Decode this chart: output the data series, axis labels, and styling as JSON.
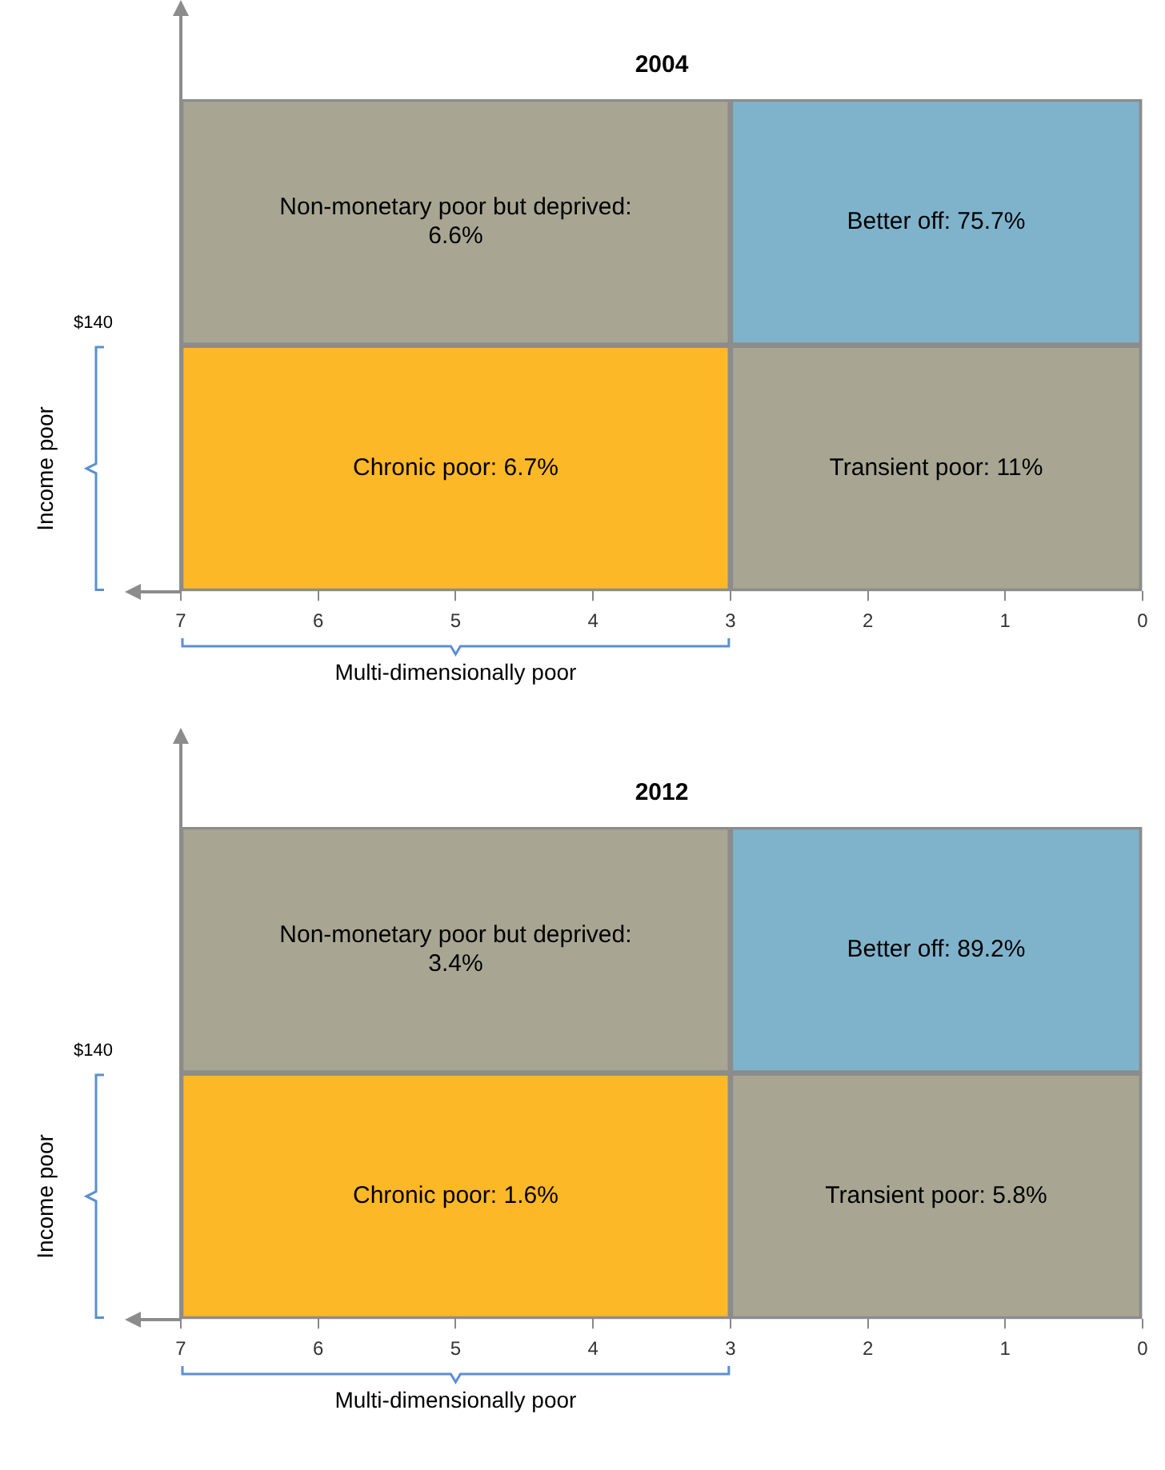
{
  "chart_data": [
    {
      "type": "bar",
      "orientation": "horizontal",
      "title": "2004",
      "xlabel": "Multi-dimensionally poor",
      "ylabel": "Income poor",
      "tick_labels": "x",
      "annotations": [
        "$140",
        "Non-monetary poor but deprived: 6.6%",
        "Chronic poor: 6.7%",
        "Better off: 75.7%",
        "Transient poor: 11%"
      ],
      "categories": [
        null,
        null
      ],
      "series": [
        {
          "values": [
            4,
            4
          ],
          "base": [
            3,
            3
          ],
          "colors": [
            "#a8a692",
            "#fdb827"
          ]
        },
        {
          "values": [
            3,
            3
          ],
          "base": [
            0,
            0
          ],
          "colors": [
            "#7fb3cb",
            "#a8a692"
          ]
        }
      ],
      "xlim": [
        7,
        0
      ],
      "xticks": [
        7,
        6,
        5,
        4,
        3,
        2,
        1,
        0
      ]
    },
    {
      "type": "bar",
      "orientation": "horizontal",
      "title": "2012",
      "xlabel": "Multi-dimensionally poor",
      "ylabel": "Income poor",
      "tick_labels": "x",
      "annotations": [
        "$140",
        "Non-monetary poor but deprived: 3.4%",
        "Chronic poor: 1.6%",
        "Better off: 89.2%",
        "Transient poor: 5.8%"
      ],
      "categories": [
        null,
        null
      ],
      "series": [
        {
          "values": [
            4,
            4
          ],
          "base": [
            3,
            3
          ],
          "colors": [
            "#a8a692",
            "#fdb827"
          ]
        },
        {
          "values": [
            3,
            3
          ],
          "base": [
            0,
            0
          ],
          "colors": [
            "#7fb3cb",
            "#a8a692"
          ]
        }
      ],
      "xlim": [
        7,
        0
      ],
      "xticks": [
        7,
        6,
        5,
        4,
        3,
        2,
        1,
        0
      ]
    }
  ]
}
